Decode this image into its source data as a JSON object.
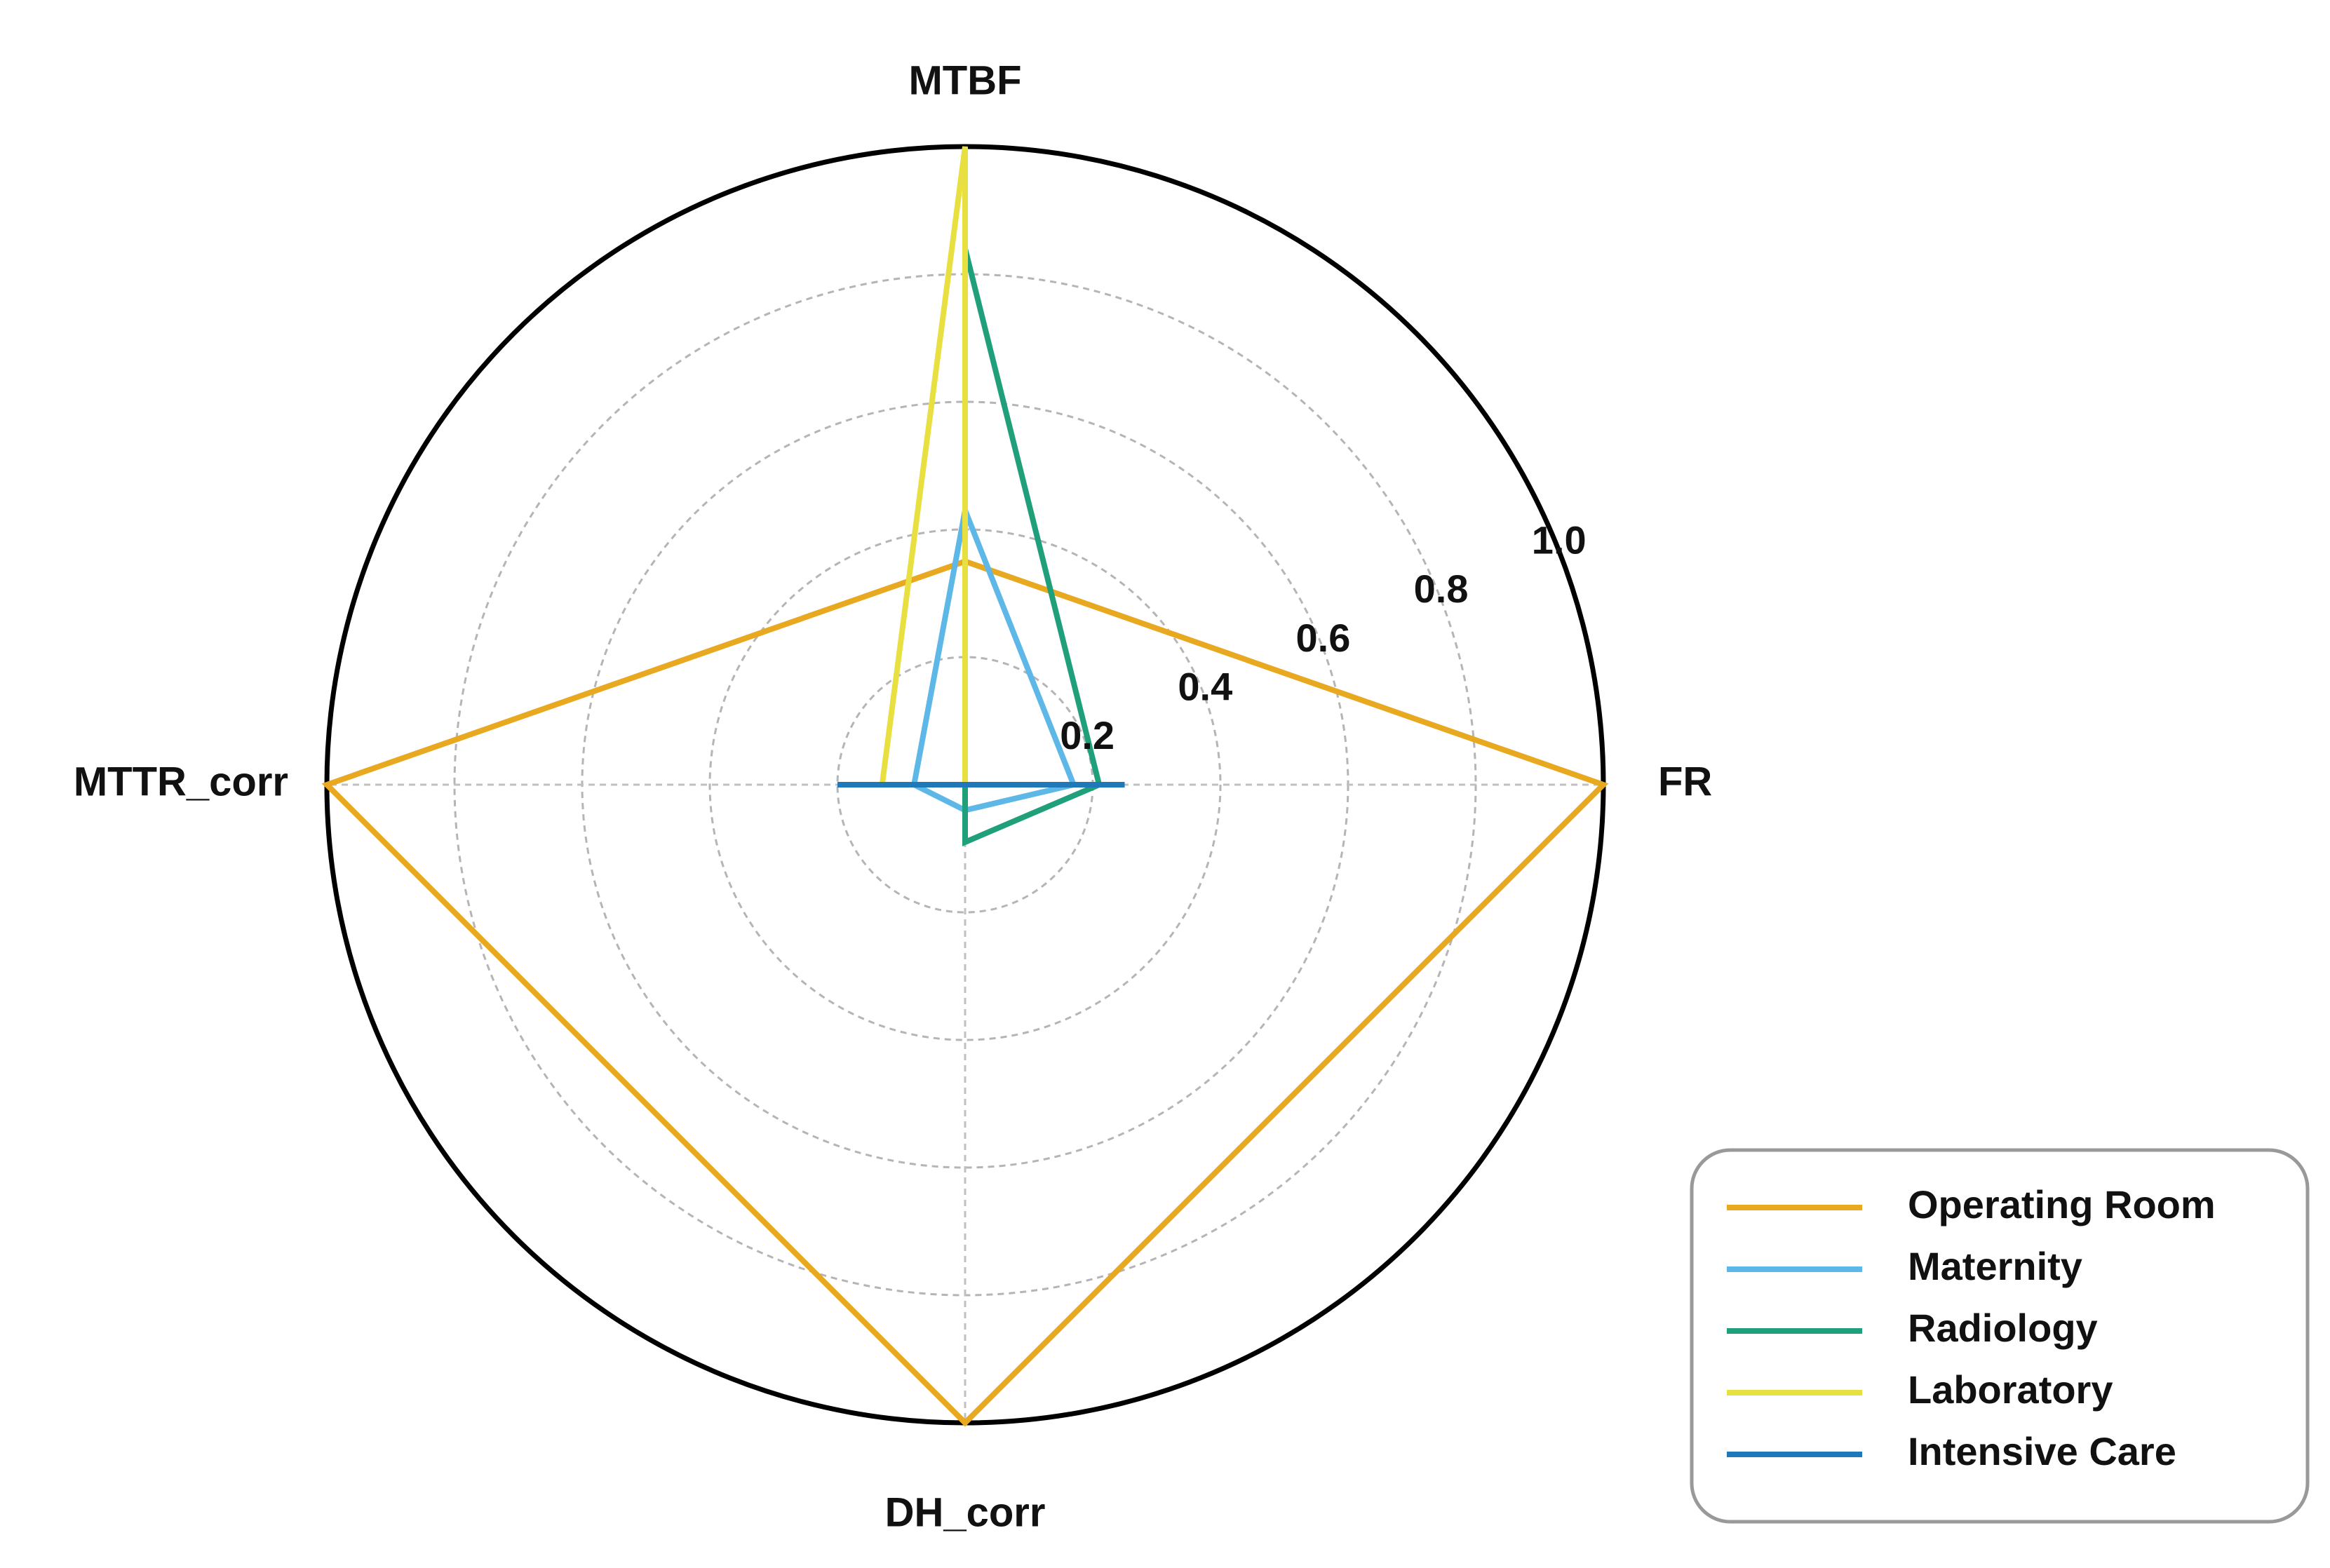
{
  "chart_data": {
    "type": "radar",
    "axes": [
      "FR",
      "MTBF",
      "MTTR_corr",
      "DH_corr"
    ],
    "rlim": [
      0,
      1.0
    ],
    "r_ticks": [
      "0.2",
      "0.4",
      "0.6",
      "0.8",
      "1.0"
    ],
    "r_tick_values": [
      0.2,
      0.4,
      0.6,
      0.8,
      1.0
    ],
    "gridlines": "dashed",
    "legend_position": "lower-right",
    "series": [
      {
        "name": "Operating Room",
        "color": "#E8A820",
        "values": [
          1.0,
          0.35,
          1.0,
          1.0
        ]
      },
      {
        "name": "Maternity",
        "color": "#5DB8E8",
        "values": [
          0.17,
          0.43,
          0.08,
          0.04
        ]
      },
      {
        "name": "Radiology",
        "color": "#1FA07A",
        "values": [
          0.21,
          0.84,
          0.0,
          0.09
        ]
      },
      {
        "name": "Laboratory",
        "color": "#E8E040",
        "values": [
          0.0,
          1.0,
          0.13,
          0.0
        ]
      },
      {
        "name": "Intensive Care",
        "color": "#1F78B8",
        "values": [
          0.25,
          0.0,
          0.2,
          0.0
        ]
      }
    ]
  }
}
